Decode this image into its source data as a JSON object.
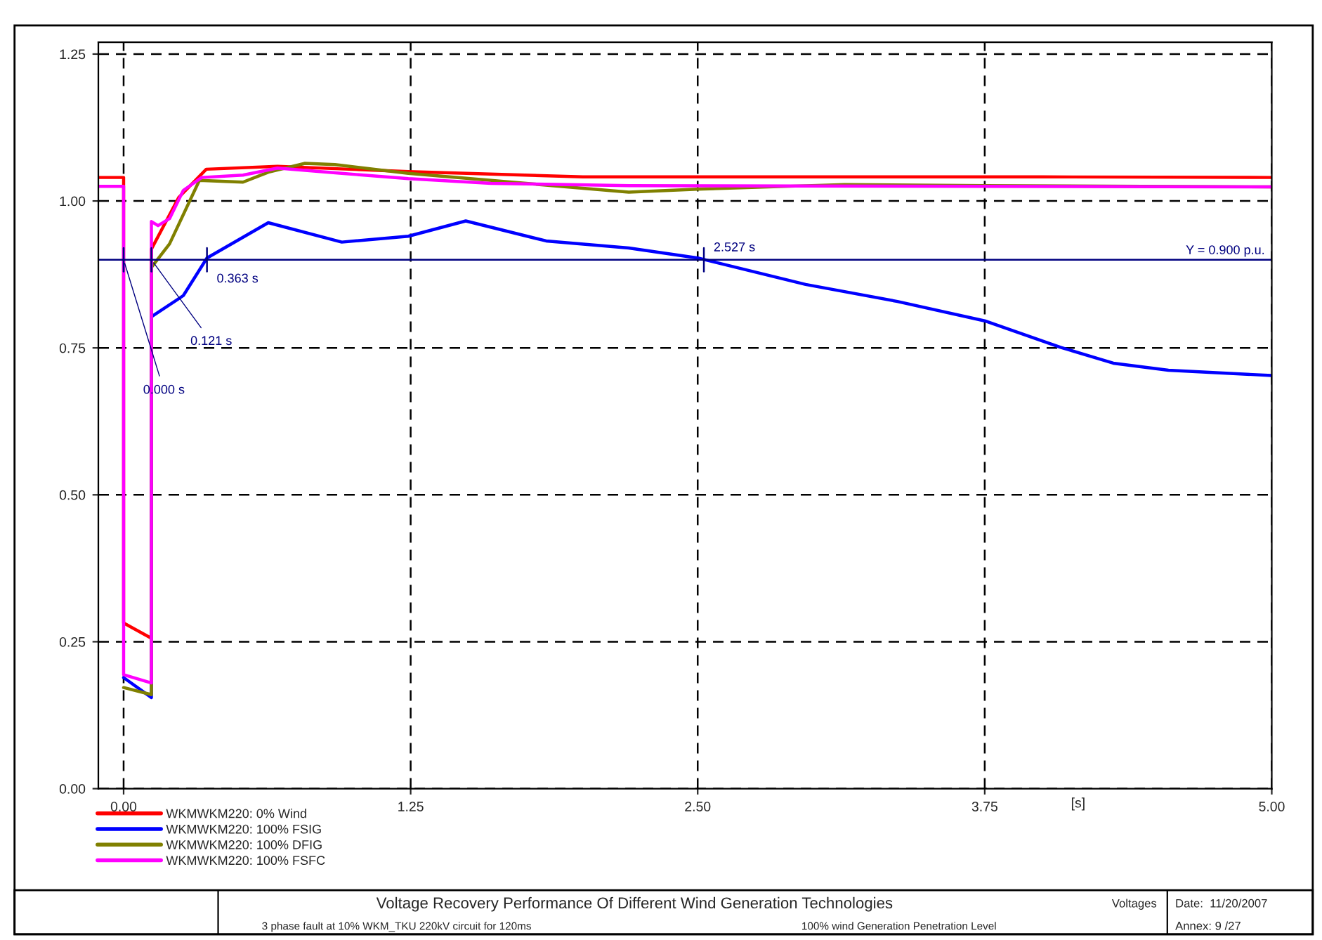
{
  "chart_data": {
    "type": "line",
    "title": "Voltage Recovery Performance Of Different Wind Generation Technologies",
    "subtitle": "3 phase fault at 10% WKM_TKU 220kV circuit for 120ms",
    "xlabel": "[s]",
    "xlim": [
      -0.11,
      5.0
    ],
    "ylim": [
      0,
      1.27
    ],
    "xticks": [
      {
        "value": 0,
        "label": "0.00"
      },
      {
        "value": 1.25,
        "label": "1.25"
      },
      {
        "value": 2.5,
        "label": "2.50"
      },
      {
        "value": 3.75,
        "label": "3.75"
      },
      {
        "value": 5,
        "label": "5.00"
      }
    ],
    "yticks": [
      {
        "value": 0,
        "label": "0.00"
      },
      {
        "value": 0.25,
        "label": "0.25"
      },
      {
        "value": 0.5,
        "label": "0.50"
      },
      {
        "value": 0.75,
        "label": "0.75"
      },
      {
        "value": 1.0,
        "label": "1.00"
      },
      {
        "value": 1.25,
        "label": "1.25"
      }
    ],
    "grid": true,
    "legend": "bottom left",
    "line_style": "solid",
    "series": [
      {
        "name": "WKMWKM220: 0% Wind",
        "color": "#ff0000",
        "x": [
          -0.11,
          0,
          0,
          0.121,
          0.121,
          0.24,
          0.36,
          0.67,
          1.24,
          2.0,
          3.0,
          4.0,
          5.0
        ],
        "values": [
          1.04,
          1.04,
          0.282,
          0.256,
          0.918,
          1.006,
          1.054,
          1.059,
          1.05,
          1.041,
          1.041,
          1.041,
          1.04
        ]
      },
      {
        "name": "WKMWKM220: 100% FSIG",
        "color": "#0000ff",
        "x": [
          0,
          0.121,
          0.121,
          0.26,
          0.363,
          0.63,
          0.95,
          1.24,
          1.49,
          1.84,
          2.2,
          2.5,
          2.97,
          3.37,
          3.75,
          4.08,
          4.31,
          4.55,
          5.0
        ],
        "values": [
          0.189,
          0.155,
          0.803,
          0.839,
          0.903,
          0.963,
          0.93,
          0.94,
          0.966,
          0.932,
          0.92,
          0.903,
          0.858,
          0.829,
          0.796,
          0.751,
          0.724,
          0.712,
          0.703
        ]
      },
      {
        "name": "WKMWKM220: 100% DFIG",
        "color": "#808000",
        "x": [
          0,
          0.121,
          0.121,
          0.2,
          0.33,
          0.52,
          0.63,
          0.79,
          0.92,
          1.24,
          1.6,
          2.2,
          2.5,
          3.14,
          3.75,
          5.0
        ],
        "values": [
          0.172,
          0.16,
          0.887,
          0.927,
          1.035,
          1.032,
          1.049,
          1.064,
          1.062,
          1.047,
          1.035,
          1.015,
          1.02,
          1.028,
          1.026,
          1.024
        ]
      },
      {
        "name": "WKMWKM220: 100% FSFC",
        "color": "#ff00ff",
        "x": [
          -0.11,
          0,
          0,
          0.121,
          0.121,
          0.15,
          0.2,
          0.26,
          0.34,
          0.52,
          0.67,
          0.95,
          1.24,
          1.6,
          2.2,
          5.0
        ],
        "values": [
          1.025,
          1.025,
          0.194,
          0.18,
          0.965,
          0.958,
          0.97,
          1.018,
          1.04,
          1.044,
          1.056,
          1.047,
          1.038,
          1.03,
          1.026,
          1.024
        ]
      }
    ],
    "ref_lines": [
      {
        "axis": "y",
        "value": 0.9,
        "label": "Y = 0.900 p.u.",
        "color": "#000080"
      }
    ],
    "annotations": [
      {
        "text": "0.000 s",
        "x": 0,
        "y": 0.9
      },
      {
        "text": "0.121 s",
        "x": 0.121,
        "y": 0.9
      },
      {
        "text": "0.363 s",
        "x": 0.363,
        "y": 0.9
      },
      {
        "text": "2.527 s",
        "x": 2.527,
        "y": 0.9
      },
      "100% wind Generation Penetration Level",
      "Voltages",
      "Date:  11/20/2007",
      "Annex: 9 /27"
    ]
  }
}
